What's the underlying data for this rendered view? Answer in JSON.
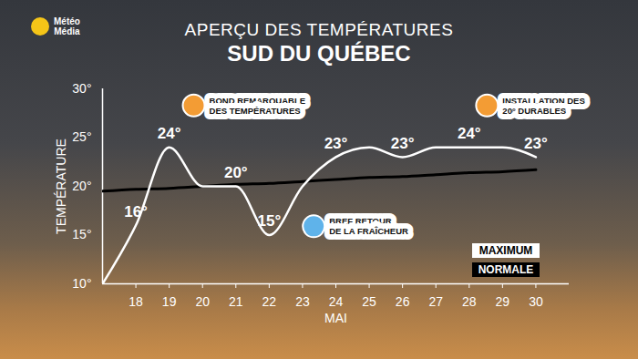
{
  "chart_data": {
    "type": "line",
    "logo": "Météo\nMédia",
    "title": "APERÇU DES TEMPÉRATURES",
    "subtitle": "SUD DU QUÉBEC",
    "x_label": "MAI",
    "y_label": "TEMPÉRATURE",
    "x": [
      17,
      18,
      19,
      20,
      21,
      22,
      23,
      24,
      25,
      26,
      27,
      28,
      29,
      30
    ],
    "series": [
      {
        "name": "MAXIMUM",
        "color": "#ffffff",
        "values": [
          10,
          16,
          24,
          20,
          20,
          15,
          20,
          23,
          24,
          23,
          24,
          24,
          24,
          23
        ],
        "value_labels": [
          null,
          "16°",
          "24°",
          null,
          "20°",
          "15°",
          null,
          "23°",
          null,
          "23°",
          null,
          "24°",
          null,
          "23°"
        ]
      },
      {
        "name": "NORMALE",
        "color": "#000000",
        "values": [
          19.5,
          19.7,
          19.8,
          20.0,
          20.2,
          20.3,
          20.5,
          20.7,
          20.9,
          21.0,
          21.2,
          21.4,
          21.5,
          21.7
        ]
      }
    ],
    "xlim": [
      17,
      31
    ],
    "xticks": [
      18,
      19,
      20,
      21,
      22,
      23,
      24,
      25,
      26,
      27,
      28,
      29,
      30
    ],
    "ylim": [
      10,
      30
    ],
    "yticks": [
      {
        "value": 10,
        "label": "10°"
      },
      {
        "value": 15,
        "label": "15°"
      },
      {
        "value": 20,
        "label": "20°"
      },
      {
        "value": 25,
        "label": "25°"
      },
      {
        "value": 30,
        "label": "30°"
      }
    ],
    "grid": false,
    "data_labels": true,
    "legend": "lower right",
    "annotations": [
      {
        "text": "BOND REMARQUABLE\nDES TEMPÉRATURES",
        "x": 20.2,
        "y": 28.3,
        "color": "#f39c34"
      },
      {
        "text": "BREF RETOUR\nDE LA FRAÎCHEUR",
        "x": 23.8,
        "y": 15.9,
        "color": "#5fb3ea"
      },
      {
        "text": "INSTALLATION DES\n20° DURABLES",
        "x": 29.0,
        "y": 28.3,
        "color": "#f39c34"
      }
    ]
  }
}
